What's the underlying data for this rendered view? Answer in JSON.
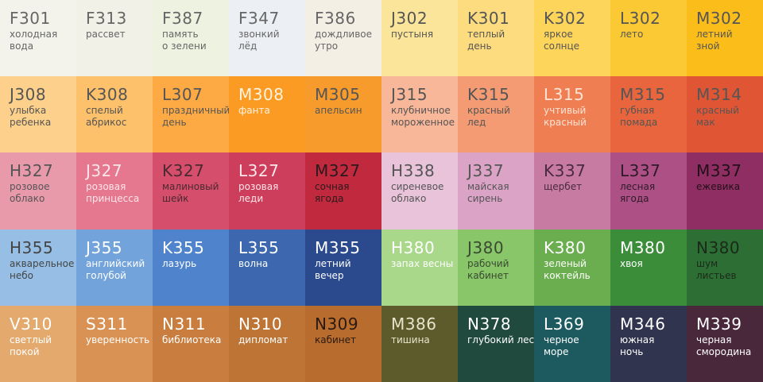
{
  "grid": {
    "rows": [
      [
        {
          "code": "F301",
          "name": [
            "холодная",
            "вода"
          ],
          "color": "#f3f3ec",
          "text_color": "#666666"
        },
        {
          "code": "F313",
          "name": [
            "рассвет"
          ],
          "color": "#f1f1e7",
          "text_color": "#666666"
        },
        {
          "code": "F387",
          "name": [
            "память",
            "о зелени"
          ],
          "color": "#eef3e1",
          "text_color": "#666666"
        },
        {
          "code": "F347",
          "name": [
            "звонкий",
            "лёд"
          ],
          "color": "#eceff3",
          "text_color": "#666666"
        },
        {
          "code": "F386",
          "name": [
            "дождливое",
            "утро"
          ],
          "color": "#f3efe4",
          "text_color": "#666666"
        },
        {
          "code": "J302",
          "name": [
            "пустыня"
          ],
          "color": "#fbe59a",
          "text_color": "#555555"
        },
        {
          "code": "K301",
          "name": [
            "теплый",
            "день"
          ],
          "color": "#fcdc7e",
          "text_color": "#555555"
        },
        {
          "code": "K302",
          "name": [
            "яркое",
            "солнце"
          ],
          "color": "#fdd55b",
          "text_color": "#555555"
        },
        {
          "code": "L302",
          "name": [
            "лето"
          ],
          "color": "#fbc934",
          "text_color": "#555555"
        },
        {
          "code": "M302",
          "name": [
            "летний",
            "зной"
          ],
          "color": "#fbbd1a",
          "text_color": "#555555"
        }
      ],
      [
        {
          "code": "J308",
          "name": [
            "улыбка",
            "ребенка"
          ],
          "color": "#fdd18c",
          "text_color": "#555555"
        },
        {
          "code": "K308",
          "name": [
            "спелый",
            "абрикос"
          ],
          "color": "#fdc06b",
          "text_color": "#555555"
        },
        {
          "code": "L307",
          "name": [
            "праздничный",
            "день"
          ],
          "color": "#fdaa44",
          "text_color": "#555555"
        },
        {
          "code": "M308",
          "name": [
            "фанта"
          ],
          "color": "#fb9b23",
          "text_color": "#fff3e0"
        },
        {
          "code": "M305",
          "name": [
            "апельсин"
          ],
          "color": "#f89b2d",
          "text_color": "#555555"
        },
        {
          "code": "J315",
          "name": [
            "клубничное",
            "мороженное"
          ],
          "color": "#f9b79a",
          "text_color": "#555555"
        },
        {
          "code": "K315",
          "name": [
            "красный",
            "лед"
          ],
          "color": "#f49b73",
          "text_color": "#555555"
        },
        {
          "code": "L315",
          "name": [
            "учтивый",
            "красный"
          ],
          "color": "#ef7f52",
          "text_color": "#fde3d6"
        },
        {
          "code": "M315",
          "name": [
            "губная",
            "помада"
          ],
          "color": "#e8653d",
          "text_color": "#555555"
        },
        {
          "code": "M314",
          "name": [
            "красный",
            "мак"
          ],
          "color": "#e05635",
          "text_color": "#555555"
        }
      ],
      [
        {
          "code": "H327",
          "name": [
            "розовое",
            "облако"
          ],
          "color": "#e99aaa",
          "text_color": "#555555"
        },
        {
          "code": "J327",
          "name": [
            "розовая",
            "принцесса"
          ],
          "color": "#e5778f",
          "text_color": "#fde6ea"
        },
        {
          "code": "K327",
          "name": [
            "малиновый",
            "шейк"
          ],
          "color": "#d54e6c",
          "text_color": "#4a2a30"
        },
        {
          "code": "L327",
          "name": [
            "розовая",
            "леди"
          ],
          "color": "#cc3e5b",
          "text_color": "#fde6ea"
        },
        {
          "code": "M327",
          "name": [
            "сочная",
            "ягода"
          ],
          "color": "#c0293e",
          "text_color": "#2a1a1c"
        },
        {
          "code": "H338",
          "name": [
            "сиреневое",
            "облако"
          ],
          "color": "#e8c3da",
          "text_color": "#555555"
        },
        {
          "code": "J337",
          "name": [
            "майская",
            "сирень"
          ],
          "color": "#dba3c6",
          "text_color": "#555555"
        },
        {
          "code": "K337",
          "name": [
            "щербет"
          ],
          "color": "#c77ba2",
          "text_color": "#4a2a40"
        },
        {
          "code": "L337",
          "name": [
            "лесная",
            "ягода"
          ],
          "color": "#ad5085",
          "text_color": "#2e1a28"
        },
        {
          "code": "M337",
          "name": [
            "ежевика"
          ],
          "color": "#8e2e63",
          "text_color": "#221018"
        }
      ],
      [
        {
          "code": "H355",
          "name": [
            "акварельное",
            "небо"
          ],
          "color": "#97bfe6",
          "text_color": "#444444"
        },
        {
          "code": "J355",
          "name": [
            "английский",
            "голубой"
          ],
          "color": "#73a3db",
          "text_color": "#ffffff"
        },
        {
          "code": "K355",
          "name": [
            "лазурь"
          ],
          "color": "#4f83cb",
          "text_color": "#ffffff"
        },
        {
          "code": "L355",
          "name": [
            "волна"
          ],
          "color": "#3d68b0",
          "text_color": "#ffffff"
        },
        {
          "code": "M355",
          "name": [
            "летний",
            "вечер"
          ],
          "color": "#2b4a8e",
          "text_color": "#ffffff"
        },
        {
          "code": "H380",
          "name": [
            "запах весны"
          ],
          "color": "#a9d88b",
          "text_color": "#ffffff"
        },
        {
          "code": "J380",
          "name": [
            "рабочий",
            "кабинет"
          ],
          "color": "#89c66a",
          "text_color": "#3a4a30"
        },
        {
          "code": "K380",
          "name": [
            "зеленый",
            "коктейль"
          ],
          "color": "#6bae4f",
          "text_color": "#ffffff"
        },
        {
          "code": "M380",
          "name": [
            "хвоя"
          ],
          "color": "#3c8d3a",
          "text_color": "#ffffff"
        },
        {
          "code": "N380",
          "name": [
            "шум",
            "листьев"
          ],
          "color": "#2d6e34",
          "text_color": "#1a2a1a"
        }
      ],
      [
        {
          "code": "V310",
          "name": [
            "светлый",
            "покой"
          ],
          "color": "#e3a96d",
          "text_color": "#ffffff"
        },
        {
          "code": "S311",
          "name": [
            "уверенность"
          ],
          "color": "#d99253",
          "text_color": "#ffffff"
        },
        {
          "code": "N311",
          "name": [
            "библиотека"
          ],
          "color": "#c97e3f",
          "text_color": "#ffffff"
        },
        {
          "code": "N310",
          "name": [
            "дипломат"
          ],
          "color": "#bd7435",
          "text_color": "#ffffff"
        },
        {
          "code": "N309",
          "name": [
            "кабинет"
          ],
          "color": "#b86c2e",
          "text_color": "#2a1a10"
        },
        {
          "code": "M386",
          "name": [
            "тишина"
          ],
          "color": "#5d5a2c",
          "text_color": "#e8e4cc"
        },
        {
          "code": "N378",
          "name": [
            "глубокий лес"
          ],
          "color": "#1f4a3d",
          "text_color": "#ffffff"
        },
        {
          "code": "L369",
          "name": [
            "черное",
            "море"
          ],
          "color": "#1d5a5f",
          "text_color": "#ffffff"
        },
        {
          "code": "M346",
          "name": [
            "южная",
            "ночь"
          ],
          "color": "#31344e",
          "text_color": "#ffffff"
        },
        {
          "code": "M339",
          "name": [
            "черная",
            "смородина"
          ],
          "color": "#49283c",
          "text_color": "#ffffff"
        }
      ]
    ]
  }
}
